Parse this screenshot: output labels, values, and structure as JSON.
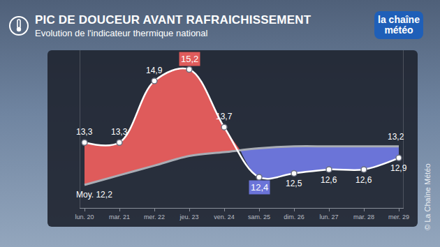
{
  "chart_data": {
    "type": "line",
    "title": "PIC DE DOUCEUR AVANT RAFRAICHISSEMENT",
    "subtitle": "Evolution de l'indicateur thermique national",
    "annotations": [
      "la chaîne météo",
      "© La Chaîne Météo"
    ],
    "categories": [
      "lun. 20",
      "mar. 21",
      "mer. 22",
      "jeu. 23",
      "ven. 24",
      "sam. 25",
      "dim. 26",
      "lun. 27",
      "mar. 28",
      "mer. 29"
    ],
    "series": [
      {
        "values": [
          13.3,
          13.3,
          14.9,
          15.2,
          13.7,
          12.4,
          12.5,
          12.6,
          12.6,
          12.9
        ],
        "value_labels": [
          "13,3",
          "13,3",
          "14,9",
          "15,2",
          "13,7",
          "12,4",
          "12,5",
          "12,6",
          "12,6",
          "12,9"
        ],
        "color": "#ffffff",
        "marker": "circle",
        "line_style": "smooth"
      },
      {
        "values": [
          12.2,
          12.45,
          12.7,
          12.95,
          13.05,
          13.15,
          13.2,
          13.2,
          13.2,
          13.2
        ],
        "value_labels": [
          "Moy. 12,2",
          null,
          null,
          null,
          null,
          null,
          null,
          null,
          null,
          "13,2"
        ],
        "color": "#a9adb5",
        "line_style": "smooth"
      }
    ],
    "ylim": [
      11.6,
      15.7
    ],
    "data_labels": true,
    "tick_labels": "x",
    "grid": false
  }
}
